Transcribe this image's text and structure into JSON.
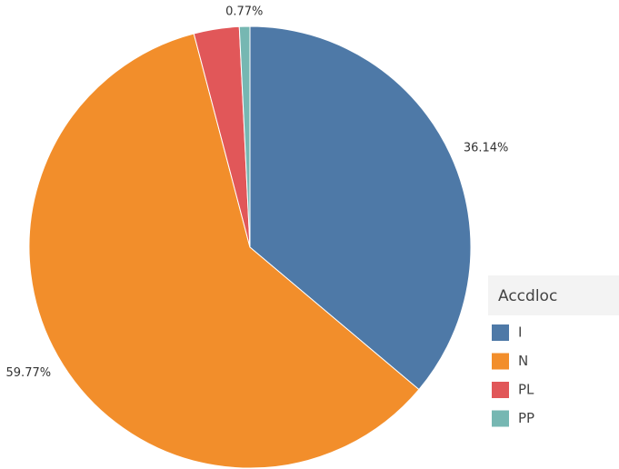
{
  "chart_data": {
    "type": "pie",
    "categories": [
      "I",
      "N",
      "PL",
      "PP"
    ],
    "values": [
      36.14,
      59.77,
      3.32,
      0.77
    ],
    "value_labels": [
      "36.14%",
      "59.77%",
      null,
      "0.77%"
    ],
    "colors": [
      "#4e79a7",
      "#f28e2b",
      "#e15759",
      "#76b7b2"
    ],
    "legend_title": "Accdloc",
    "legend": "right"
  }
}
